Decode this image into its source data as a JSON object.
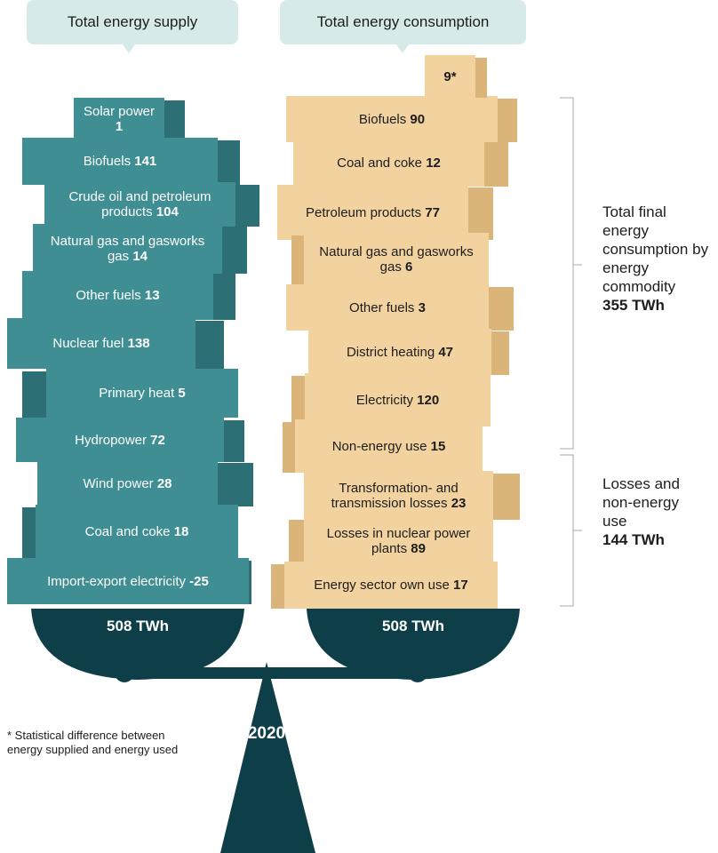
{
  "header": {
    "supply_title": "Total energy supply",
    "consumption_title": "Total energy consumption"
  },
  "supply": {
    "items": [
      {
        "label": "Solar power",
        "value": 1
      },
      {
        "label": "Biofuels",
        "value": 141
      },
      {
        "label": "Crude oil and petroleum products",
        "value": 104
      },
      {
        "label": "Natural gas and gasworks gas",
        "value": 14
      },
      {
        "label": "Other fuels",
        "value": 13
      },
      {
        "label": "Nuclear fuel",
        "value": 138
      },
      {
        "label": "Primary heat",
        "value": 5
      },
      {
        "label": "Hydropower",
        "value": 72
      },
      {
        "label": "Wind power",
        "value": 28
      },
      {
        "label": "Coal and coke",
        "value": 18
      },
      {
        "label": "Import-export electricity",
        "value": -25
      }
    ],
    "total": "508 TWh"
  },
  "consumption": {
    "statistical_difference": "9*",
    "items": [
      {
        "label": "Biofuels",
        "value": 90
      },
      {
        "label": "Coal and coke",
        "value": 12
      },
      {
        "label": "Petroleum products",
        "value": 77
      },
      {
        "label": "Natural gas and gasworks gas",
        "value": 6
      },
      {
        "label": "Other fuels",
        "value": 3
      },
      {
        "label": "District heating",
        "value": 47
      },
      {
        "label": "Electricity",
        "value": 120
      },
      {
        "label": "Non-energy use",
        "value": 15
      },
      {
        "label": "Transformation- and transmission losses",
        "value": 23
      },
      {
        "label": "Losses in nuclear power plants",
        "value": 89
      },
      {
        "label": "Energy sector own use",
        "value": 17
      }
    ],
    "total": "508 TWh"
  },
  "brackets": [
    {
      "label": "Total final energy consumption by energy commodity",
      "value": "355 TWh"
    },
    {
      "label": "Losses and non-energy use",
      "value": "144 TWh"
    }
  ],
  "footnote": "* Statistical difference between energy supplied and energy used",
  "year": 2020
}
